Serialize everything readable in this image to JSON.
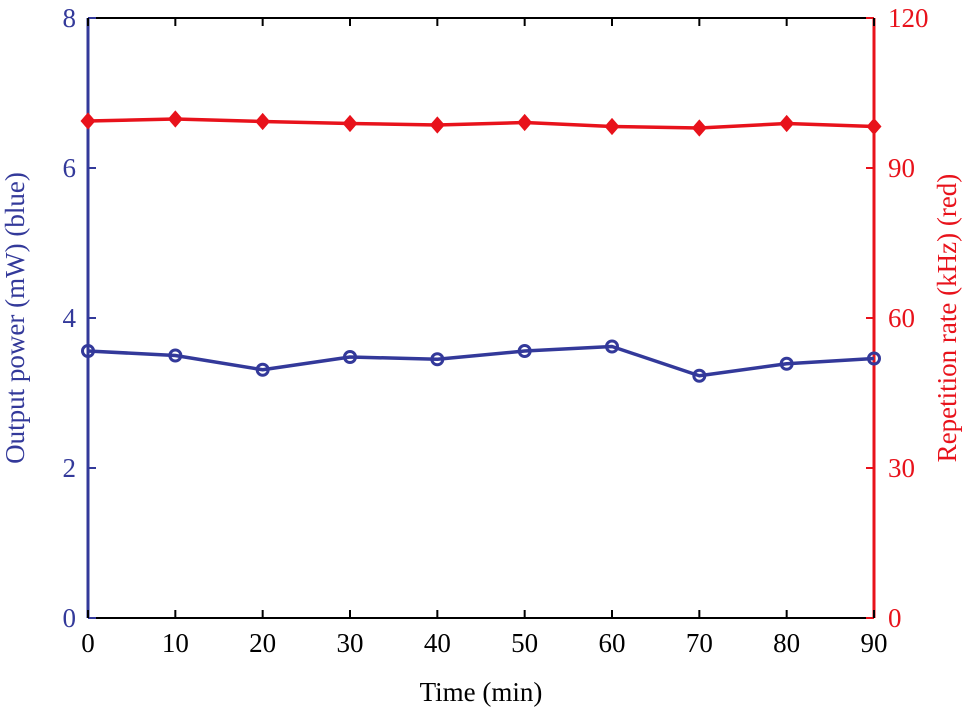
{
  "chart_data": {
    "type": "line",
    "xlabel": "Time (min)",
    "ylabel_left": "Output power (mW) (blue)",
    "ylabel_right": "Repetition rate (kHz) (red)",
    "x": [
      0,
      10,
      20,
      30,
      40,
      50,
      60,
      70,
      80,
      90
    ],
    "xlim": [
      0,
      90
    ],
    "xticks": [
      "0",
      "10",
      "20",
      "30",
      "40",
      "50",
      "60",
      "70",
      "80",
      "90"
    ],
    "ylim_left": [
      0,
      8
    ],
    "yticks_left": [
      "0",
      "2",
      "4",
      "6",
      "8"
    ],
    "ylim_right": [
      0,
      120
    ],
    "yticks_right": [
      "0",
      "30",
      "60",
      "90",
      "120"
    ],
    "grid": false,
    "series": [
      {
        "axis": "left",
        "color": "#33399a",
        "marker": "circle",
        "values": [
          3.56,
          3.5,
          3.31,
          3.48,
          3.45,
          3.56,
          3.62,
          3.23,
          3.39,
          3.46
        ]
      },
      {
        "axis": "right",
        "color": "#e8121b",
        "marker": "diamond",
        "values": [
          99.4,
          99.8,
          99.3,
          98.9,
          98.6,
          99.1,
          98.3,
          98.0,
          98.9,
          98.3
        ]
      }
    ]
  }
}
